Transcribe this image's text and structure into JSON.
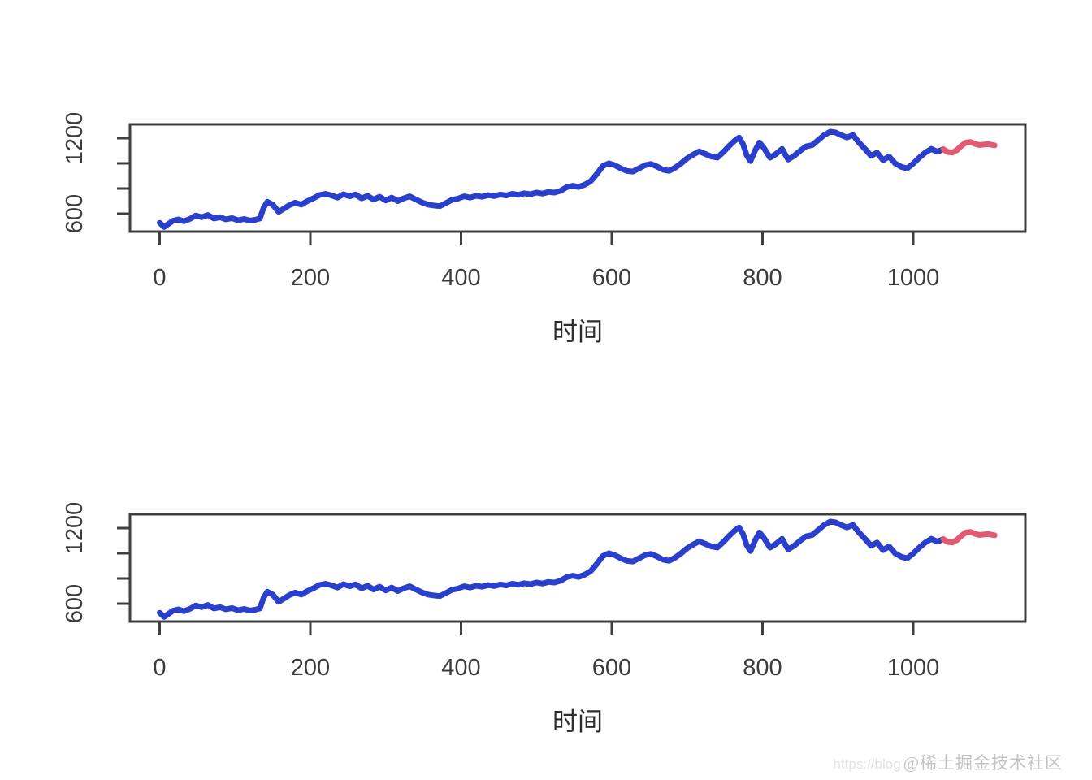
{
  "page": {
    "background": "#ffffff"
  },
  "watermark": {
    "url_text": "https://blog",
    "handle_text": "@稀土掘金技术社区"
  },
  "colors": {
    "axis": "#3f3f3f",
    "tick_text": "#3c3c3c",
    "observed": "#2a3fcb",
    "forecast": "#e05a72"
  },
  "chart_data": [
    {
      "id": "top-forecast-plot",
      "type": "line",
      "title": "",
      "xlabel": "时间",
      "ylabel": "",
      "xlim": [
        -39,
        1149
      ],
      "ylim": [
        481,
        1307
      ],
      "x_ticks": [
        0,
        200,
        400,
        600,
        800,
        1000
      ],
      "y_ticks": [
        600,
        800,
        1000,
        1200
      ],
      "y_tick_labels": [
        "600",
        "",
        "",
        "1200"
      ],
      "grid": false,
      "legend": "none",
      "series": [
        {
          "name": "observed",
          "color": "#2a3fcb",
          "x": [
            0,
            6,
            12,
            18,
            25,
            32,
            40,
            48,
            56,
            64,
            72,
            80,
            88,
            96,
            104,
            112,
            120,
            127,
            133,
            138,
            143,
            150,
            158,
            165,
            172,
            180,
            188,
            196,
            204,
            212,
            220,
            228,
            236,
            244,
            252,
            260,
            268,
            276,
            284,
            292,
            300,
            308,
            316,
            324,
            332,
            340,
            348,
            356,
            364,
            372,
            380,
            388,
            396,
            404,
            412,
            420,
            428,
            436,
            444,
            452,
            460,
            468,
            476,
            484,
            492,
            500,
            508,
            516,
            524,
            532,
            540,
            548,
            556,
            564,
            572,
            580,
            588,
            596,
            604,
            612,
            620,
            628,
            636,
            644,
            652,
            660,
            668,
            676,
            684,
            692,
            700,
            708,
            716,
            724,
            732,
            740,
            748,
            756,
            763,
            769,
            774,
            779,
            784,
            790,
            796,
            802,
            810,
            818,
            826,
            834,
            842,
            850,
            858,
            866,
            874,
            882,
            890,
            897,
            904,
            912,
            920,
            928,
            936,
            944,
            952,
            960,
            968,
            976,
            984,
            992,
            1000,
            1008,
            1016,
            1024,
            1032,
            1040
          ],
          "values": [
            528,
            495,
            520,
            545,
            555,
            540,
            558,
            585,
            572,
            590,
            562,
            572,
            555,
            565,
            548,
            558,
            545,
            552,
            562,
            648,
            695,
            672,
            615,
            640,
            668,
            688,
            672,
            700,
            722,
            748,
            758,
            745,
            728,
            755,
            738,
            752,
            722,
            742,
            712,
            735,
            705,
            728,
            700,
            722,
            738,
            712,
            690,
            672,
            665,
            660,
            685,
            710,
            720,
            738,
            728,
            742,
            735,
            748,
            740,
            752,
            745,
            758,
            750,
            762,
            755,
            768,
            760,
            772,
            768,
            782,
            810,
            822,
            812,
            830,
            858,
            915,
            978,
            1000,
            985,
            960,
            940,
            935,
            960,
            985,
            995,
            975,
            950,
            940,
            965,
            1000,
            1040,
            1070,
            1095,
            1075,
            1055,
            1045,
            1090,
            1140,
            1180,
            1205,
            1155,
            1065,
            1018,
            1100,
            1165,
            1120,
            1045,
            1075,
            1115,
            1030,
            1060,
            1100,
            1135,
            1145,
            1185,
            1225,
            1252,
            1245,
            1225,
            1205,
            1225,
            1165,
            1115,
            1060,
            1085,
            1025,
            1055,
            1000,
            972,
            960,
            998,
            1045,
            1085,
            1115,
            1092,
            1112
          ]
        },
        {
          "name": "forecast",
          "color": "#e05a72",
          "x": [
            1040,
            1046,
            1052,
            1058,
            1064,
            1070,
            1076,
            1082,
            1088,
            1094,
            1100,
            1108
          ],
          "values": [
            1112,
            1090,
            1086,
            1105,
            1140,
            1165,
            1170,
            1155,
            1145,
            1150,
            1152,
            1143
          ]
        }
      ]
    },
    {
      "id": "bottom-forecast-plot",
      "type": "line",
      "title": "",
      "xlabel": "时间",
      "ylabel": "",
      "xlim": [
        -39,
        1149
      ],
      "ylim": [
        481,
        1307
      ],
      "x_ticks": [
        0,
        200,
        400,
        600,
        800,
        1000
      ],
      "y_ticks": [
        600,
        800,
        1000,
        1200
      ],
      "y_tick_labels": [
        "600",
        "",
        "",
        "1200"
      ],
      "grid": false,
      "legend": "none",
      "series": "same_as_first"
    }
  ]
}
